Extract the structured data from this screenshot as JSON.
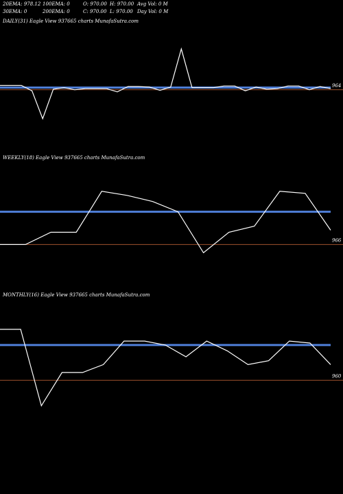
{
  "header": {
    "row1": [
      "20EMA: 978.12",
      "100EMA: 0",
      "O: 970.00",
      "H: 970.00",
      "Avg Vol: 0  M"
    ],
    "row2": [
      "30EMA: 0",
      "200EMA: 0",
      "C: 970.00",
      "L: 970.00",
      "Day Vol: 0  M"
    ]
  },
  "colors": {
    "background": "#000000",
    "price_line": "#ffffff",
    "ema_line": "#4f7fd9",
    "ref_line": "#a0522d"
  },
  "chart_data": [
    {
      "type": "line",
      "title": "DAILY(31) Eagle  View  937665 charts MunafaSutra.com",
      "ylim": [
        850,
        1080
      ],
      "level_label": "964",
      "level_value": 964,
      "ema_value": 968,
      "series": [
        {
          "values": [
            972,
            972,
            972,
            962,
            910,
            965,
            968,
            964,
            966,
            966,
            966,
            960,
            970,
            970,
            969,
            963,
            969,
            1040,
            968,
            968,
            968,
            971,
            971,
            962,
            969,
            965,
            966,
            971,
            971,
            964,
            970,
            966
          ]
        }
      ]
    },
    {
      "type": "line",
      "title": "WEEKLY(18) Eagle  View  937665 charts MunafaSutra.com",
      "ylim": [
        938,
        1005
      ],
      "level_label": "966",
      "level_value": 966,
      "ema_value": 982,
      "series": [
        {
          "values": [
            966,
            966,
            972,
            972,
            992,
            990,
            987,
            982,
            962,
            972,
            975,
            992,
            991,
            973
          ]
        }
      ]
    },
    {
      "type": "line",
      "title": "MONTHLY(16) Eagle  View  937665 charts MunafaSutra.com",
      "ylim": [
        930,
        1000
      ],
      "level_label": "960",
      "level_value": 960,
      "ema_value": 978,
      "series": [
        {
          "values": [
            986,
            986,
            947,
            964,
            964,
            968,
            980,
            980,
            978,
            972,
            980,
            975,
            968,
            970,
            980,
            979,
            968
          ]
        }
      ]
    }
  ]
}
